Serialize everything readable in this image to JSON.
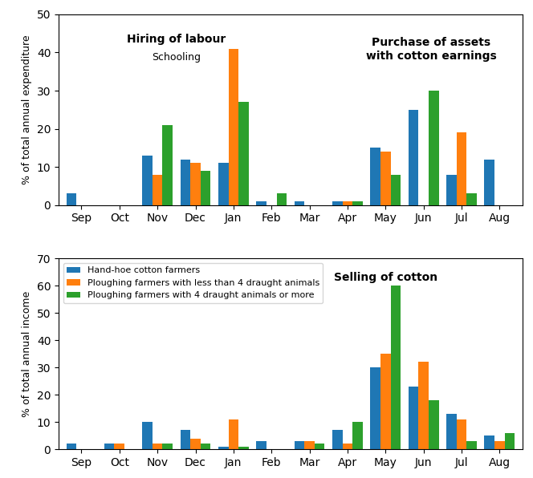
{
  "chart_data": [
    {
      "type": "bar",
      "categories": [
        "Sep",
        "Oct",
        "Nov",
        "Dec",
        "Jan",
        "Feb",
        "Mar",
        "Apr",
        "May",
        "Jun",
        "Jul",
        "Aug"
      ],
      "ylabel": "% of total annual expenditure",
      "ylim": [
        0,
        50
      ],
      "yticks": [
        0,
        10,
        20,
        30,
        40,
        50
      ],
      "series": [
        {
          "values": [
            3,
            0,
            13,
            12,
            11,
            1,
            1,
            1,
            15,
            25,
            8,
            12
          ]
        },
        {
          "values": [
            0,
            0,
            8,
            11,
            41,
            0,
            0,
            1,
            14,
            0,
            19,
            0
          ]
        },
        {
          "values": [
            0,
            0,
            21,
            9,
            27,
            3,
            0,
            1,
            8,
            30,
            3,
            0
          ]
        }
      ],
      "annotations": [
        "Hiring of labour",
        "Schooling",
        "Purchase of assets\nwith cotton earnings"
      ]
    },
    {
      "type": "bar",
      "categories": [
        "Sep",
        "Oct",
        "Nov",
        "Dec",
        "Jan",
        "Feb",
        "Mar",
        "Apr",
        "May",
        "Jun",
        "Jul",
        "Aug"
      ],
      "ylabel": "% of total annual income",
      "ylim": [
        0,
        70
      ],
      "yticks": [
        0,
        10,
        20,
        30,
        40,
        50,
        60,
        70
      ],
      "series": [
        {
          "name": "Hand-hoe cotton farmers",
          "values": [
            2,
            2,
            10,
            7,
            1,
            3,
            3,
            7,
            30,
            23,
            13,
            5
          ]
        },
        {
          "name": "Ploughing farmers with less than 4 draught animals",
          "values": [
            0,
            2,
            2,
            4,
            11,
            0,
            3,
            2,
            35,
            32,
            11,
            3
          ]
        },
        {
          "name": "Ploughing farmers with 4 draught animals or more",
          "values": [
            0,
            0,
            2,
            2,
            1,
            0,
            2,
            10,
            60,
            18,
            3,
            6
          ]
        }
      ],
      "legend": "upper left",
      "annotations": [
        "Selling of cotton"
      ]
    }
  ]
}
